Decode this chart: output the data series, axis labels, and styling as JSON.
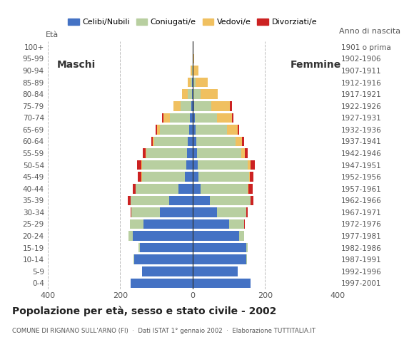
{
  "title": "Popolazione per età, sesso e stato civile - 2002",
  "subtitle": "COMUNE DI RIGNANO SULL'ARNO (FI)  ·  Dati ISTAT 1° gennaio 2002  ·  Elaborazione TUTTITALIA.IT",
  "xlabel_left": "Maschi",
  "xlabel_right": "Femmine",
  "ylabel_right": "Anno di nascita",
  "age_groups": [
    "0-4",
    "5-9",
    "10-14",
    "15-19",
    "20-24",
    "25-29",
    "30-34",
    "35-39",
    "40-44",
    "45-49",
    "50-54",
    "55-59",
    "60-64",
    "65-69",
    "70-74",
    "75-79",
    "80-84",
    "85-89",
    "90-94",
    "95-99",
    "100+"
  ],
  "birth_years": [
    "1997-2001",
    "1992-1996",
    "1987-1991",
    "1982-1986",
    "1977-1981",
    "1972-1976",
    "1967-1971",
    "1962-1966",
    "1957-1961",
    "1952-1956",
    "1947-1951",
    "1942-1946",
    "1937-1941",
    "1932-1936",
    "1927-1931",
    "1922-1926",
    "1917-1921",
    "1912-1916",
    "1907-1911",
    "1902-1906",
    "1901 o prima"
  ],
  "colors": {
    "celibi": "#4472c4",
    "coniugati": "#b8cfa0",
    "vedovi": "#f0c060",
    "divorziati": "#cc2222"
  },
  "legend_labels": [
    "Celibi/Nubili",
    "Coniugati/e",
    "Vedovi/e",
    "Divorziati/e"
  ],
  "maschi": {
    "celibi": [
      170,
      140,
      160,
      145,
      165,
      135,
      90,
      65,
      38,
      22,
      18,
      16,
      13,
      10,
      7,
      4,
      2,
      1,
      0,
      0,
      0
    ],
    "coniugati": [
      0,
      0,
      2,
      5,
      12,
      38,
      78,
      105,
      120,
      118,
      122,
      112,
      92,
      80,
      55,
      28,
      12,
      5,
      2,
      0,
      0
    ],
    "vedovi": [
      0,
      0,
      0,
      0,
      0,
      0,
      0,
      0,
      0,
      1,
      1,
      2,
      4,
      7,
      18,
      20,
      15,
      8,
      3,
      0,
      0
    ],
    "divorziati": [
      0,
      0,
      0,
      0,
      0,
      0,
      2,
      8,
      6,
      10,
      12,
      8,
      5,
      5,
      5,
      0,
      0,
      0,
      0,
      0,
      0
    ]
  },
  "femmine": {
    "nubili": [
      160,
      125,
      148,
      148,
      128,
      102,
      68,
      48,
      22,
      16,
      14,
      12,
      10,
      8,
      6,
      4,
      2,
      1,
      0,
      0,
      0
    ],
    "coniugate": [
      0,
      0,
      2,
      5,
      14,
      40,
      80,
      112,
      130,
      140,
      138,
      122,
      108,
      88,
      62,
      48,
      20,
      8,
      2,
      0,
      0
    ],
    "vedove": [
      0,
      0,
      0,
      0,
      0,
      0,
      0,
      1,
      2,
      3,
      8,
      10,
      18,
      28,
      40,
      52,
      48,
      32,
      15,
      5,
      1
    ],
    "divorziate": [
      0,
      0,
      0,
      0,
      0,
      2,
      4,
      8,
      12,
      10,
      12,
      8,
      6,
      5,
      5,
      5,
      0,
      0,
      0,
      0,
      0
    ]
  },
  "xlim": 400,
  "background_color": "#ffffff",
  "grid_color": "#bbbbbb"
}
